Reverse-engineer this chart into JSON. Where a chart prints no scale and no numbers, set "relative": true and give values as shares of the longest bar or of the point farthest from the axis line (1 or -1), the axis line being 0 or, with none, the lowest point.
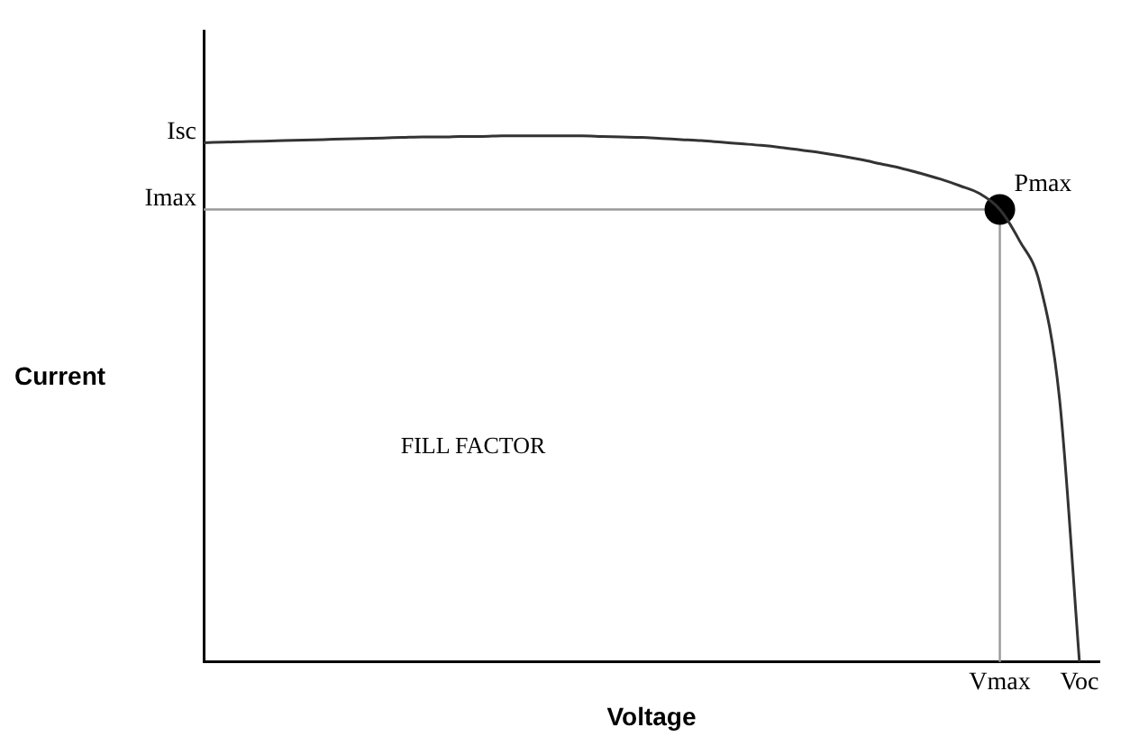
{
  "chart_data": {
    "type": "line",
    "relative": true,
    "xlabel": "Voltage",
    "ylabel": "Current",
    "categories": [
      null,
      null,
      null,
      null,
      null,
      null,
      null,
      null,
      null,
      null,
      null,
      null,
      null,
      null,
      null,
      null,
      null,
      null,
      null,
      null,
      null,
      null,
      null,
      null,
      null,
      null,
      null,
      null,
      null,
      null,
      null,
      null,
      null,
      null,
      null,
      null,
      null,
      null,
      null,
      null,
      "Vmax",
      null,
      null,
      null,
      "Voc",
      null
    ],
    "series": [
      {
        "type": "line",
        "color": "#333333",
        "values": [
          0.987,
          0.988,
          0.989,
          0.99,
          0.991,
          0.992,
          0.993,
          0.994,
          0.995,
          0.996,
          0.997,
          0.998,
          0.998,
          0.999,
          0.999,
          1,
          1,
          1,
          1,
          1,
          0.999,
          0.998,
          0.997,
          0.995,
          0.993,
          0.991,
          0.988,
          0.985,
          0.982,
          0.978,
          0.973,
          0.968,
          0.962,
          0.955,
          0.947,
          0.939,
          0.929,
          0.918,
          0.905,
          0.89,
          0.86,
          0.8,
          0.72,
          0.5,
          0,
          null
        ]
      },
      {
        "type": "scatter",
        "name": "Pmax",
        "color": "#000000",
        "marker": "circle",
        "values": [
          null,
          null,
          null,
          null,
          null,
          null,
          null,
          null,
          null,
          null,
          null,
          null,
          null,
          null,
          null,
          null,
          null,
          null,
          null,
          null,
          null,
          null,
          null,
          null,
          null,
          null,
          null,
          null,
          null,
          null,
          null,
          null,
          null,
          null,
          null,
          null,
          null,
          null,
          null,
          null,
          0.86,
          null,
          null,
          null,
          null,
          null
        ]
      }
    ],
    "ref_lines": [
      {
        "axis": "y",
        "value": 0.86,
        "label": "Imax",
        "color": "#999999"
      },
      {
        "axis": "x",
        "value": "Vmax",
        "color": "#999999"
      }
    ],
    "annotations": [
      "Isc",
      "FILL FACTOR"
    ],
    "grid": false,
    "legend": false
  }
}
